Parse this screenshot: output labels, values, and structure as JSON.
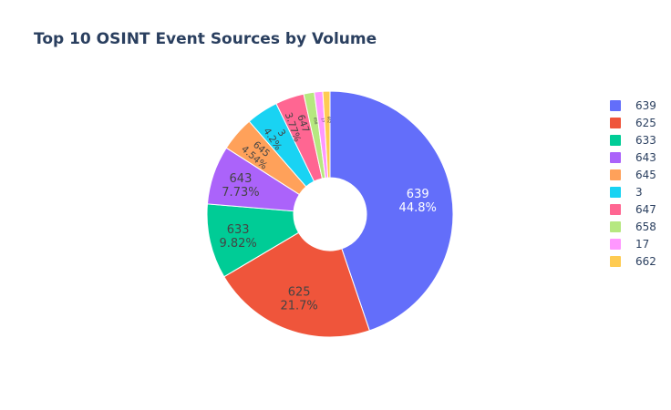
{
  "chart_data": {
    "type": "pie",
    "hole": true,
    "title": "Top 10 OSINT Event Sources by Volume",
    "legend_position": "right",
    "slices": [
      {
        "label": "639",
        "value": 44.8,
        "percent_text": "44.8%",
        "color": "#636efa",
        "text_color": "#ffffff"
      },
      {
        "label": "625",
        "value": 21.7,
        "percent_text": "21.7%",
        "color": "#ef553b",
        "text_color": "#444444"
      },
      {
        "label": "633",
        "value": 9.82,
        "percent_text": "9.82%",
        "color": "#00cc96",
        "text_color": "#444444"
      },
      {
        "label": "643",
        "value": 7.73,
        "percent_text": "7.73%",
        "color": "#ab63fa",
        "text_color": "#444444"
      },
      {
        "label": "645",
        "value": 4.54,
        "percent_text": "4.54%",
        "color": "#ffa15a",
        "text_color": "#444444"
      },
      {
        "label": "3",
        "value": 4.2,
        "percent_text": "4.2%",
        "color": "#19d3f3",
        "text_color": "#444444"
      },
      {
        "label": "647",
        "value": 3.77,
        "percent_text": "3.77%",
        "color": "#ff6692",
        "text_color": "#444444"
      },
      {
        "label": "658",
        "value": 1.4,
        "percent_text": "",
        "color": "#b6e880",
        "text_color": "#444444"
      },
      {
        "label": "17",
        "value": 1.1,
        "percent_text": "",
        "color": "#ff97ff",
        "text_color": "#444444"
      },
      {
        "label": "662",
        "value": 0.94,
        "percent_text": "",
        "color": "#fecb52",
        "text_color": "#444444"
      }
    ]
  }
}
